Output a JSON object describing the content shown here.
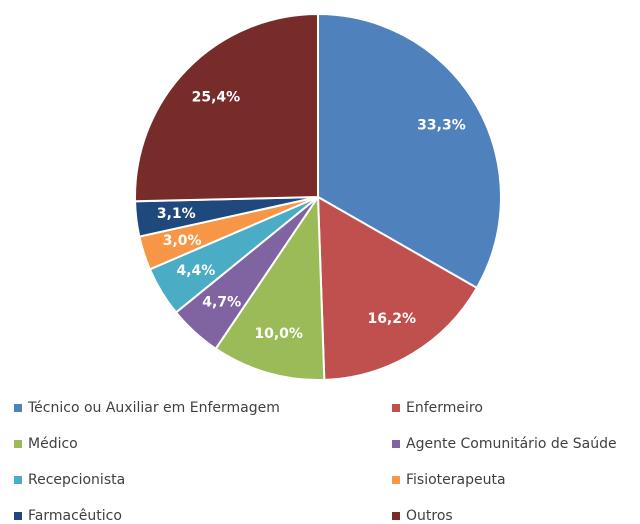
{
  "chart_data": {
    "type": "pie",
    "categories": [
      "Técnico ou Auxiliar em Enfermagem",
      "Enfermeiro",
      "Médico",
      "Agente Comunitário de Saúde",
      "Recepcionista",
      "Fisioterapeuta",
      "Farmacêutico",
      "Outros"
    ],
    "values": [
      33.3,
      16.2,
      10.0,
      4.7,
      4.4,
      3.0,
      3.1,
      25.4
    ],
    "value_labels": [
      "33,3%",
      "16,2%",
      "10,0%",
      "4,7%",
      "4,4%",
      "3,0%",
      "3,1%",
      "25,4%"
    ],
    "colors": [
      "#4f81bd",
      "#c0504d",
      "#9bbb59",
      "#8064a2",
      "#4bacc6",
      "#f79646",
      "#1f497d",
      "#772c2a"
    ],
    "legend": "bottom"
  }
}
